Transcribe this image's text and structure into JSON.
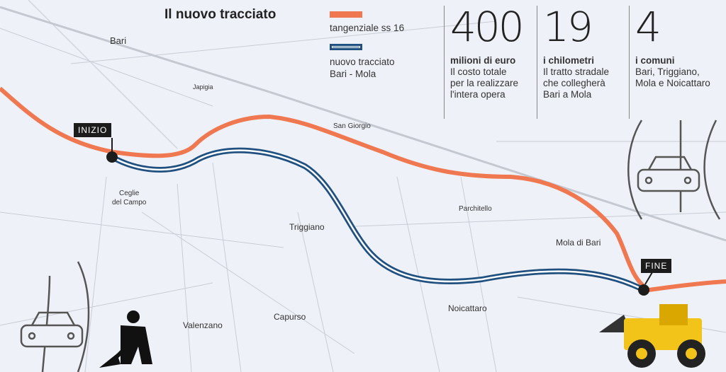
{
  "title": "Il nuovo tracciato",
  "legend": [
    {
      "label": "tangenziale ss 16",
      "color": "#f07850"
    },
    {
      "label_line1": "nuovo tracciato",
      "label_line2": "Bari - Mola",
      "color": "#205080"
    }
  ],
  "stats": [
    {
      "value": "400",
      "heading": "milioni di euro",
      "lines": [
        "Il costo totale",
        "per la realizzare",
        "l'intera opera"
      ]
    },
    {
      "value": "19",
      "heading": "i chilometri",
      "lines": [
        "Il tratto stradale",
        "che collegherà",
        "Bari a Mola"
      ]
    },
    {
      "value": "4",
      "heading": "i comuni",
      "lines": [
        "Bari, Triggiano,",
        "Mola e Noicattaro"
      ]
    }
  ],
  "markers": {
    "start": "INIZIO",
    "end": "FINE"
  },
  "places": {
    "bari": "Bari",
    "japigia": "Japigia",
    "san_giorgio": "San Giorgio",
    "ceglie_1": "Ceglie",
    "ceglie_2": "del Campo",
    "triggiano": "Triggiano",
    "parchitello": "Parchitello",
    "mola": "Mola di Bari",
    "capurso": "Capurso",
    "valenzano": "Valenzano",
    "noicattaro": "Noicattaro"
  },
  "icons": [
    "car-icon",
    "worker-digging-icon",
    "bulldozer-icon"
  ]
}
